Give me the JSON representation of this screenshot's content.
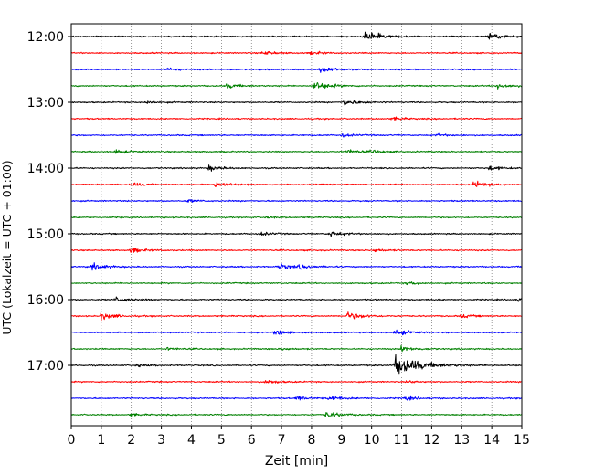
{
  "chart_data": {
    "type": "line",
    "xlabel": "Zeit  [min]",
    "ylabel": "UTC (Lokalzeit = UTC + 01:00)",
    "xlim": [
      0,
      15
    ],
    "x_ticks": [
      0,
      1,
      2,
      3,
      4,
      5,
      6,
      7,
      8,
      9,
      10,
      11,
      12,
      13,
      14,
      15
    ],
    "y_tick_labels": [
      "12:00",
      "13:00",
      "14:00",
      "15:00",
      "16:00",
      "17:00"
    ],
    "grid": "vertical-dotted",
    "series_colors": [
      "#000000",
      "#ff0000",
      "#0000ff",
      "#008000"
    ],
    "rows": [
      {
        "time": "12:00",
        "color": "#000000",
        "events": [
          {
            "at": 9.8,
            "amp": 13
          },
          {
            "at": 13.9,
            "amp": 10
          }
        ]
      },
      {
        "time": "12:15",
        "color": "#ff0000",
        "events": [
          {
            "at": 6.4,
            "amp": 5
          },
          {
            "at": 8.0,
            "amp": 4
          }
        ]
      },
      {
        "time": "12:30",
        "color": "#0000ff",
        "events": [
          {
            "at": 8.3,
            "amp": 8
          },
          {
            "at": 3.2,
            "amp": 4
          }
        ]
      },
      {
        "time": "12:45",
        "color": "#008000",
        "events": [
          {
            "at": 5.2,
            "amp": 6
          },
          {
            "at": 8.1,
            "amp": 11
          },
          {
            "at": 14.2,
            "amp": 7
          }
        ]
      },
      {
        "time": "13:00",
        "color": "#000000",
        "events": [
          {
            "at": 9.1,
            "amp": 8
          },
          {
            "at": 2.5,
            "amp": 4
          }
        ]
      },
      {
        "time": "13:15",
        "color": "#ff0000",
        "events": [
          {
            "at": 10.7,
            "amp": 4
          }
        ]
      },
      {
        "time": "13:30",
        "color": "#0000ff",
        "events": [
          {
            "at": 9.0,
            "amp": 4
          },
          {
            "at": 12.2,
            "amp": 3
          }
        ]
      },
      {
        "time": "13:45",
        "color": "#008000",
        "events": [
          {
            "at": 1.5,
            "amp": 5
          },
          {
            "at": 9.2,
            "amp": 5
          },
          {
            "at": 10.0,
            "amp": 4
          }
        ]
      },
      {
        "time": "14:00",
        "color": "#000000",
        "events": [
          {
            "at": 4.6,
            "amp": 7
          },
          {
            "at": 13.9,
            "amp": 6
          }
        ]
      },
      {
        "time": "14:15",
        "color": "#ff0000",
        "events": [
          {
            "at": 2.0,
            "amp": 5
          },
          {
            "at": 4.8,
            "amp": 8
          },
          {
            "at": 13.4,
            "amp": 8
          }
        ]
      },
      {
        "time": "14:30",
        "color": "#0000ff",
        "events": [
          {
            "at": 3.9,
            "amp": 3
          }
        ]
      },
      {
        "time": "14:45",
        "color": "#008000",
        "events": [
          {
            "at": 6.5,
            "amp": 2
          }
        ]
      },
      {
        "time": "15:00",
        "color": "#000000",
        "events": [
          {
            "at": 8.6,
            "amp": 7
          },
          {
            "at": 6.3,
            "amp": 4
          }
        ]
      },
      {
        "time": "15:15",
        "color": "#ff0000",
        "events": [
          {
            "at": 2.0,
            "amp": 6
          },
          {
            "at": 10.1,
            "amp": 4
          }
        ]
      },
      {
        "time": "15:30",
        "color": "#0000ff",
        "events": [
          {
            "at": 0.7,
            "amp": 8
          },
          {
            "at": 6.9,
            "amp": 7
          },
          {
            "at": 7.6,
            "amp": 5
          }
        ]
      },
      {
        "time": "15:45",
        "color": "#008000",
        "events": [
          {
            "at": 11.2,
            "amp": 4
          }
        ]
      },
      {
        "time": "16:00",
        "color": "#000000",
        "events": [
          {
            "at": 1.5,
            "amp": 7
          },
          {
            "at": 14.9,
            "amp": 5
          }
        ]
      },
      {
        "time": "16:15",
        "color": "#ff0000",
        "events": [
          {
            "at": 1.0,
            "amp": 9
          },
          {
            "at": 9.2,
            "amp": 10
          },
          {
            "at": 13.0,
            "amp": 4
          }
        ]
      },
      {
        "time": "16:30",
        "color": "#0000ff",
        "events": [
          {
            "at": 6.8,
            "amp": 8
          },
          {
            "at": 10.8,
            "amp": 8
          }
        ]
      },
      {
        "time": "16:45",
        "color": "#008000",
        "events": [
          {
            "at": 11.0,
            "amp": 7
          },
          {
            "at": 7.0,
            "amp": 3
          },
          {
            "at": 3.2,
            "amp": 3
          }
        ]
      },
      {
        "time": "17:00",
        "color": "#000000",
        "events": [
          {
            "at": 10.8,
            "amp": 26
          },
          {
            "at": 2.2,
            "amp": 3
          }
        ]
      },
      {
        "time": "17:15",
        "color": "#ff0000",
        "events": [
          {
            "at": 6.5,
            "amp": 5
          },
          {
            "at": 11.2,
            "amp": 3
          }
        ]
      },
      {
        "time": "17:30",
        "color": "#0000ff",
        "events": [
          {
            "at": 8.6,
            "amp": 6
          },
          {
            "at": 7.5,
            "amp": 5
          },
          {
            "at": 11.1,
            "amp": 5
          }
        ]
      },
      {
        "time": "17:45",
        "color": "#008000",
        "events": [
          {
            "at": 8.5,
            "amp": 8
          },
          {
            "at": 2.0,
            "amp": 3
          }
        ]
      }
    ]
  }
}
